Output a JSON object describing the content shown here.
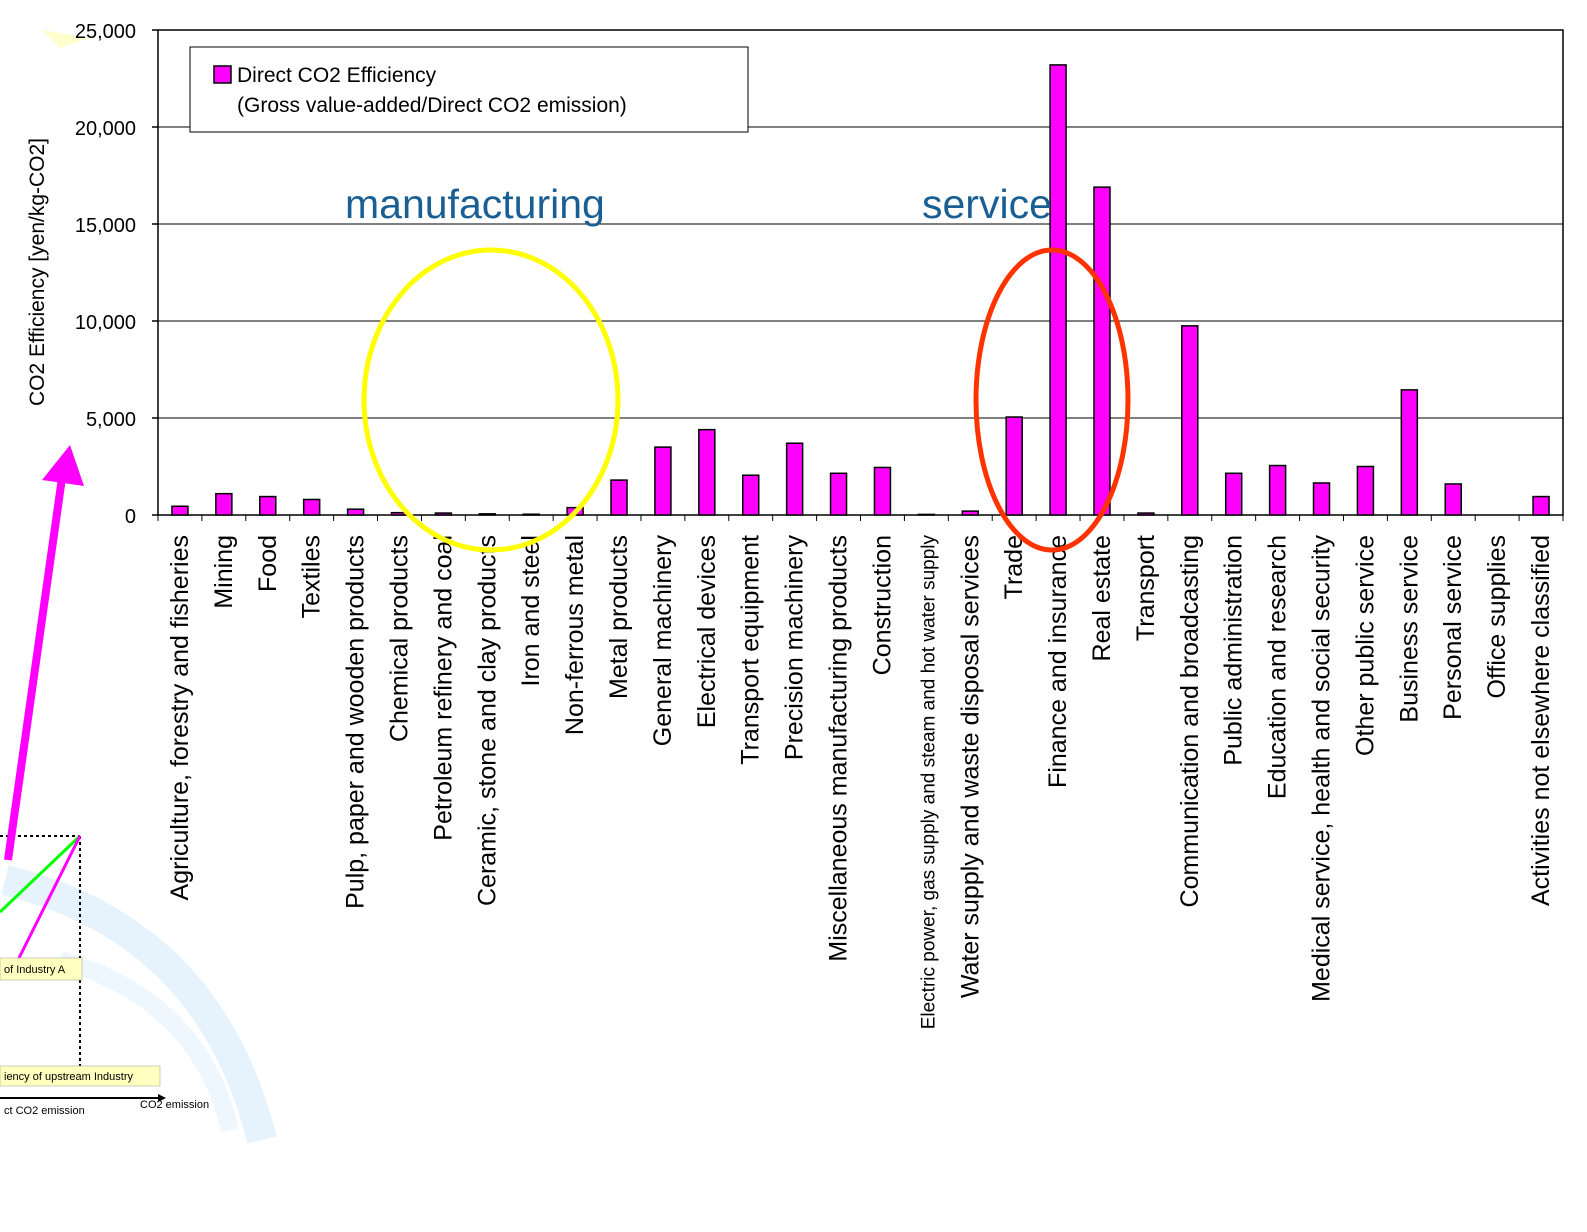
{
  "chart_data": {
    "type": "bar",
    "title": "",
    "xlabel": "",
    "ylabel": "CO2 Efficiency [yen/kg-CO2]",
    "ylim": [
      0,
      25000
    ],
    "yticks": [
      "0",
      "5,000",
      "10,000",
      "15,000",
      "20,000",
      "25,000"
    ],
    "grid": "horizontal",
    "legend_position": "top-left",
    "series": [
      {
        "name": "Direct CO2 Efficiency",
        "name_line2": "(Gross value-added/Direct CO2 emission)",
        "color": "#ff00ff",
        "values": [
          450,
          1100,
          950,
          800,
          300,
          120,
          100,
          60,
          40,
          380,
          1800,
          3500,
          4400,
          2050,
          3700,
          2150,
          2450,
          30,
          200,
          5050,
          23200,
          16900,
          100,
          9750,
          2150,
          2550,
          1650,
          2500,
          6450,
          1600,
          0,
          950
        ]
      }
    ],
    "categories": [
      "Agriculture, forestry and fisheries",
      "Mining",
      "Food",
      "Textiles",
      "Pulp, paper and wooden products",
      "Chemical products",
      "Petroleum refinery and coal",
      "Ceramic, stone and clay products",
      "Iron and steel",
      "Non-ferrous metal",
      "Metal products",
      "General machinery",
      "Electrical devices",
      "Transport equipment",
      "Precision machinery",
      "Miscellaneous manufacturing products",
      "Construction",
      "Electric power, gas supply and steam and hot water supply",
      "Water supply and waste disposal services",
      "Trade",
      "Finance and insurance",
      "Real estate",
      "Transport",
      "Communication and broadcasting",
      "Public administration",
      "Education and research",
      "Medical service, health and social security",
      "Other public service",
      "Business service",
      "Personal service",
      "Office supplies",
      "Activities not elsewhere classified"
    ],
    "annotations": [
      "manufacturing",
      "service"
    ]
  },
  "background_diagram": {
    "label_industry_a": "of Industry A",
    "label_upstream": "iency of upstream Industry",
    "label_direct": "ct CO2 emission",
    "label_co2": "CO2 emission"
  },
  "colors": {
    "bar": "#ff00ff",
    "manufacturing_circle": "#ffff00",
    "service_circle": "#ff3300",
    "annotation_text": "#1a5f94",
    "arrow": "#ff00ff"
  }
}
